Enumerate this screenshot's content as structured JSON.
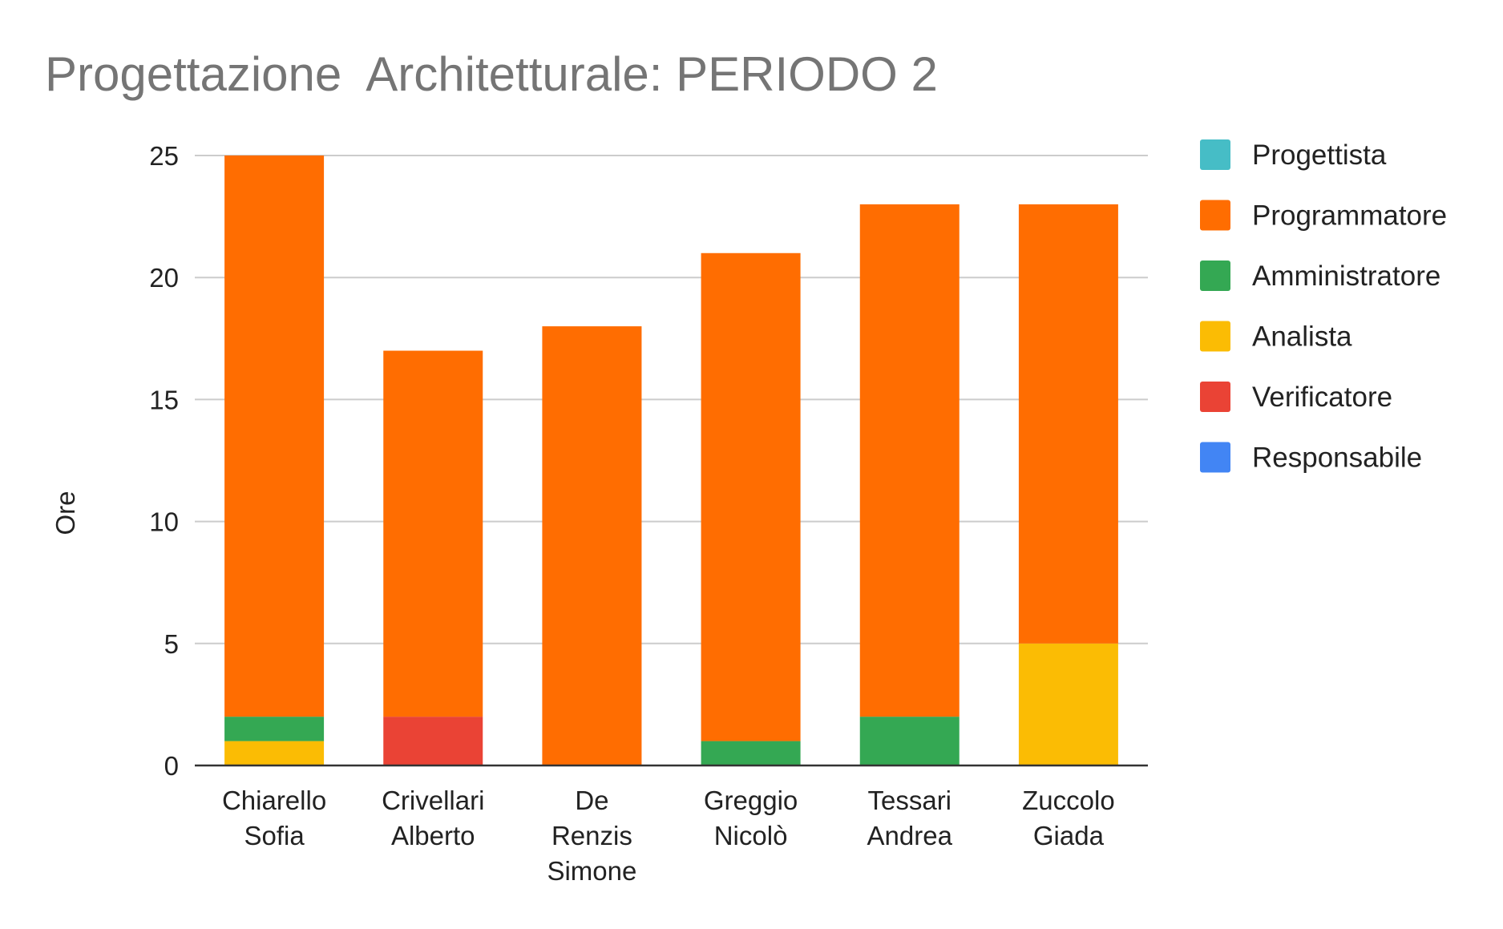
{
  "chart_data": {
    "type": "bar",
    "stacked": true,
    "title": "Progettazione  Architetturale: PERIODO 2",
    "xlabel": "",
    "ylabel": "Ore",
    "ylim": [
      0,
      25
    ],
    "yticks": [
      0,
      5,
      10,
      15,
      20,
      25
    ],
    "grid": true,
    "legend_position": "right",
    "categories": [
      [
        "Chiarello",
        "Sofia"
      ],
      [
        "Crivellari",
        "Alberto"
      ],
      [
        "De",
        "Renzis",
        "Simone"
      ],
      [
        "Greggio",
        "Nicolò"
      ],
      [
        "Tessari",
        "Andrea"
      ],
      [
        "Zuccolo",
        "Giada"
      ]
    ],
    "series": [
      {
        "name": "Progettista",
        "color": "#46bdc6",
        "values": [
          0,
          0,
          0,
          0,
          0,
          0
        ]
      },
      {
        "name": "Programmatore",
        "color": "#ff6d01",
        "values": [
          23,
          15,
          18,
          20,
          21,
          18
        ]
      },
      {
        "name": "Amministratore",
        "color": "#34a853",
        "values": [
          1,
          0,
          0,
          1,
          2,
          0
        ]
      },
      {
        "name": "Analista",
        "color": "#fbbc04",
        "values": [
          1,
          0,
          0,
          0,
          0,
          5
        ]
      },
      {
        "name": "Verificatore",
        "color": "#ea4335",
        "values": [
          0,
          2,
          0,
          0,
          0,
          0
        ]
      },
      {
        "name": "Responsabile",
        "color": "#4285f4",
        "values": [
          0,
          0,
          0,
          0,
          0,
          0
        ]
      }
    ]
  }
}
